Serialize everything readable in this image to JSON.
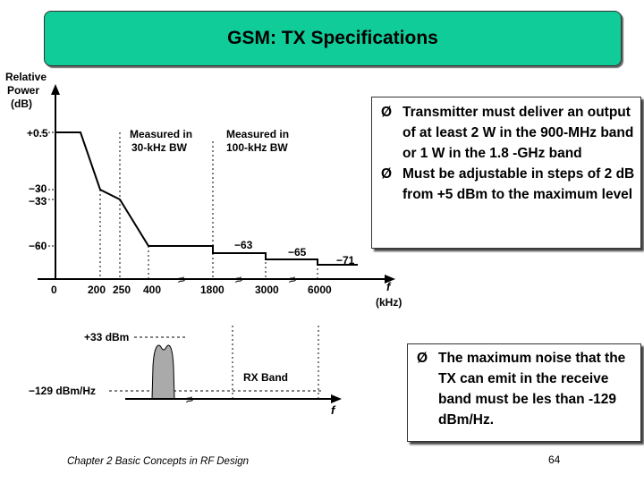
{
  "title": "GSM: TX Specifications",
  "bullets_top": [
    "Transmitter must deliver an output of at least 2 W in the 900-MHz band or 1 W in the 1.8 -GHz band",
    "Must be adjustable in steps of 2 dB from +5 dBm to the maximum level"
  ],
  "bullets_bottom": [
    "The maximum noise that the TX can emit in the receive band must be les than -129 dBm/Hz."
  ],
  "bullet_glyph": "Ø",
  "footer": "Chapter 2 Basic Concepts in RF Design",
  "page_number": "64",
  "mask_diagram": {
    "y_axis_label": [
      "Relative",
      "Power",
      "(dB)"
    ],
    "y_ticks": [
      "+0.5",
      "−30",
      "−33",
      "−60"
    ],
    "x_ticks": [
      "0",
      "200",
      "250",
      "400",
      "1800",
      "3000",
      "6000"
    ],
    "x_axis_label": [
      "f",
      "(kHz)"
    ],
    "region_labels": [
      [
        "Measured in",
        "30-kHz BW"
      ],
      [
        "Measured in",
        "100-kHz BW"
      ]
    ],
    "level_labels": [
      "−63",
      "−65",
      "−71"
    ],
    "break_glyph": "≈"
  },
  "noise_diagram": {
    "top_label": "+33 dBm",
    "floor_label": "−129 dBm/Hz",
    "band_label": "RX Band",
    "x_label": "f",
    "break_glyph": "≈"
  }
}
